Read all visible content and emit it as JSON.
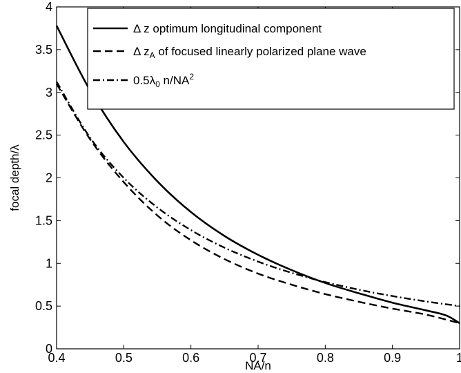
{
  "chart_data": {
    "type": "line",
    "title": "",
    "xlabel": "NA/n",
    "ylabel": "focal depth/λ",
    "xlim": [
      0.4,
      1.0
    ],
    "ylim": [
      0,
      4
    ],
    "xticks": [
      0.4,
      0.5,
      0.6,
      0.7,
      0.8,
      0.9,
      1.0
    ],
    "xtick_labels": [
      "0.4",
      "0.5",
      "0.6",
      "0.7",
      "0.8",
      "0.9",
      "1"
    ],
    "yticks": [
      0,
      0.5,
      1,
      1.5,
      2,
      2.5,
      3,
      3.5,
      4
    ],
    "ytick_labels": [
      "0",
      "0.5",
      "1",
      "1.5",
      "2",
      "2.5",
      "3",
      "3.5",
      "4"
    ],
    "grid": false,
    "legend_position": "top-right",
    "series": [
      {
        "name": "Δ z optimum longitudinal component",
        "style": "solid",
        "color": "#000000",
        "x": [
          0.4,
          0.45,
          0.5,
          0.55,
          0.6,
          0.65,
          0.7,
          0.75,
          0.8,
          0.85,
          0.9,
          0.95,
          0.98,
          1.0
        ],
        "y": [
          3.78,
          3.02,
          2.42,
          1.96,
          1.6,
          1.32,
          1.1,
          0.92,
          0.77,
          0.65,
          0.54,
          0.45,
          0.39,
          0.3
        ]
      },
      {
        "name": "Δ z_A of focused linearly polarized plane wave",
        "name_parts": [
          "Δ z",
          "A",
          " of focused linearly polarized plane wave"
        ],
        "style": "dashed",
        "color": "#000000",
        "x": [
          0.4,
          0.45,
          0.5,
          0.55,
          0.6,
          0.65,
          0.7,
          0.75,
          0.8,
          0.85,
          0.9,
          0.95,
          1.0
        ],
        "y": [
          3.1,
          2.45,
          1.95,
          1.56,
          1.27,
          1.05,
          0.88,
          0.75,
          0.64,
          0.55,
          0.47,
          0.4,
          0.3
        ]
      },
      {
        "name": "0.5λ_0 n/NA^2",
        "name_parts": [
          "0.5λ",
          "0",
          " n/NA",
          "2"
        ],
        "style": "dashdot",
        "color": "#000000",
        "x": [
          0.4,
          0.45,
          0.5,
          0.55,
          0.6,
          0.65,
          0.7,
          0.75,
          0.8,
          0.85,
          0.9,
          0.95,
          1.0
        ],
        "y": [
          3.125,
          2.469,
          2.0,
          1.653,
          1.389,
          1.183,
          1.02,
          0.889,
          0.781,
          0.692,
          0.617,
          0.554,
          0.5
        ]
      }
    ]
  }
}
